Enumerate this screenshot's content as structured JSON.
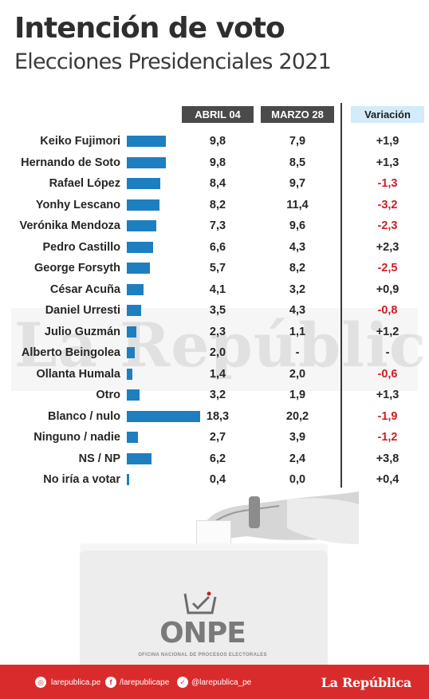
{
  "title": "Intención de voto",
  "subtitle": "Elecciones Presidenciales 2021",
  "columns": {
    "april": "ABRIL 04",
    "march": "MARZO 28",
    "variation": "Variación"
  },
  "watermark": "La República",
  "chart_data": {
    "type": "bar",
    "orientation": "horizontal",
    "categories": [
      "Keiko Fujimori",
      "Hernando de Soto",
      "Rafael López",
      "Yonhy Lescano",
      "Verónika Mendoza",
      "Pedro Castillo",
      "George Forsyth",
      "César Acuña",
      "Daniel Urresti",
      "Julio Guzmán",
      "Alberto Beingolea",
      "Ollanta Humala",
      "Otro",
      "Blanco / nulo",
      "Ninguno / nadie",
      "NS / NP",
      "No iría a votar"
    ],
    "series": [
      {
        "name": "ABRIL 04",
        "values": [
          9.8,
          9.8,
          8.4,
          8.2,
          7.3,
          6.6,
          5.7,
          4.1,
          3.5,
          2.3,
          2.0,
          1.4,
          3.2,
          18.3,
          2.7,
          6.2,
          0.4
        ],
        "labels": [
          "9,8",
          "9,8",
          "8,4",
          "8,2",
          "7,3",
          "6,6",
          "5,7",
          "4,1",
          "3,5",
          "2,3",
          "2,0",
          "1,4",
          "3,2",
          "18,3",
          "2,7",
          "6,2",
          "0,4"
        ]
      },
      {
        "name": "MARZO 28",
        "values": [
          7.9,
          8.5,
          9.7,
          11.4,
          9.6,
          4.3,
          8.2,
          3.2,
          4.3,
          1.1,
          null,
          2.0,
          1.9,
          20.2,
          3.9,
          2.4,
          0.0
        ],
        "labels": [
          "7,9",
          "8,5",
          "9,7",
          "11,4",
          "9,6",
          "4,3",
          "8,2",
          "3,2",
          "4,3",
          "1,1",
          "-",
          "2,0",
          "1,9",
          "20,2",
          "3,9",
          "2,4",
          "0,0"
        ]
      },
      {
        "name": "Variación",
        "values": [
          1.9,
          1.3,
          -1.3,
          -3.2,
          -2.3,
          2.3,
          -2.5,
          0.9,
          -0.8,
          1.2,
          null,
          -0.6,
          1.3,
          -1.9,
          -1.2,
          3.8,
          0.4
        ],
        "labels": [
          "+1,9",
          "+1,3",
          "-1,3",
          "-3,2",
          "-2,3",
          "+2,3",
          "-2,5",
          "+0,9",
          "-0,8",
          "+1,2",
          "-",
          "-0,6",
          "+1,3",
          "-1,9",
          "-1,2",
          "+3,8",
          "+0,4"
        ]
      }
    ],
    "bar_series": "ABRIL 04",
    "bar_color": "#1d7fc0",
    "negative_color": "#cc1f26",
    "header_dark_color": "#4a4a4a",
    "header_light_color": "#d3ebfa"
  },
  "illustration": {
    "logo_text": "ONPE",
    "logo_subtitle": "OFICINA NACIONAL DE PROCESOS ELECTORALES"
  },
  "footer": {
    "web": "larepublica.pe",
    "facebook": "/larepublicape",
    "twitter": "@larepublica_pe",
    "brand": "La República",
    "web_icon": "globe-icon",
    "facebook_icon": "facebook-icon",
    "twitter_icon": "twitter-icon",
    "color": "#d92b2b"
  }
}
